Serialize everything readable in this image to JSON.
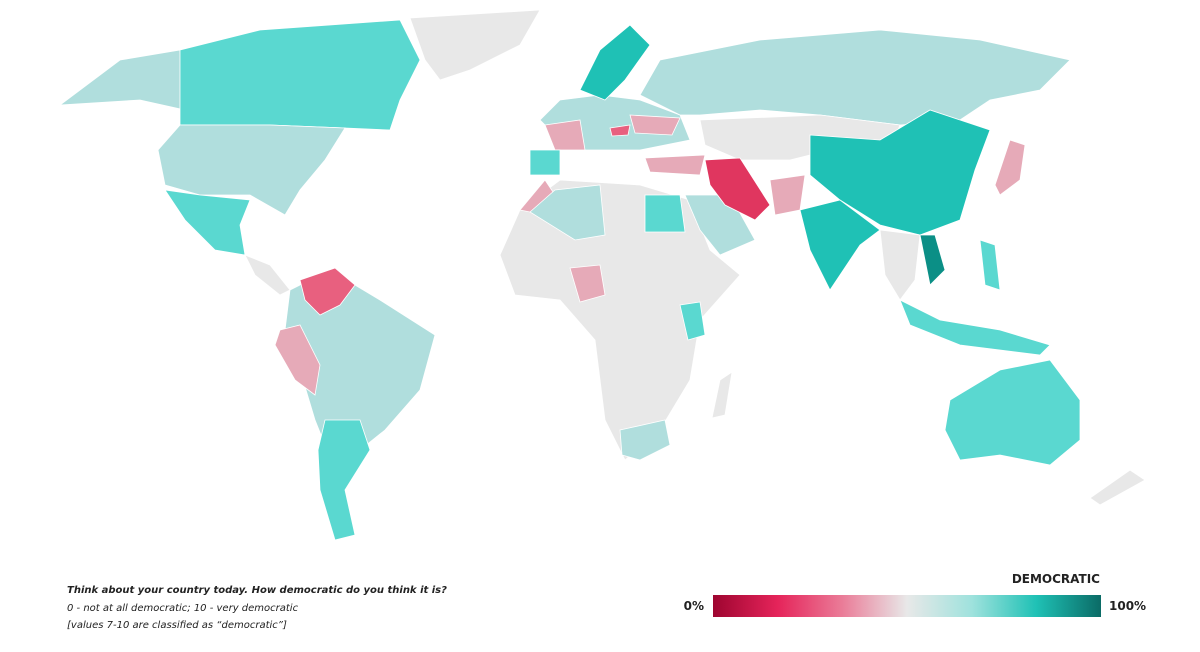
{
  "question": {
    "title": "Think about your country today. How democratic do you think it is?",
    "scale": "0 - not at all democratic; 10 - very democratic",
    "note": "[values 7-10 are classified as “democratic”]"
  },
  "legend": {
    "title": "DEMOCRATIC",
    "min_label": "0%",
    "max_label": "100%",
    "gradient": [
      "#9e0530",
      "#e5245a",
      "#ea7c98",
      "#e8e8e8",
      "#9fe2dd",
      "#1fc1b5",
      "#0b6b66"
    ]
  }
}
